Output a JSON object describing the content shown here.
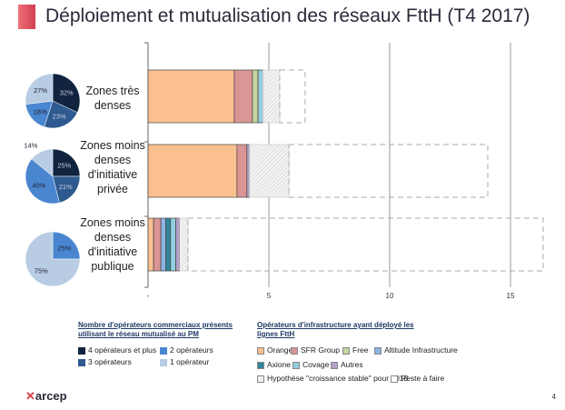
{
  "title": "Déploiement et mutualisation des réseaux FttH (T4 2017)",
  "page_number": "4",
  "logo_text": "arcep",
  "chart_data": [
    {
      "type": "bar",
      "orientation": "horizontal-stacked",
      "categories": [
        "Zones très denses",
        "Zones moins denses d'initiative privée",
        "Zones moins denses d'initiative publique"
      ],
      "category_lines": [
        [
          "Zones très",
          "denses"
        ],
        [
          "Zones moins",
          "denses",
          "d'initiative",
          "privée"
        ],
        [
          "Zones moins",
          "denses",
          "d'initiative",
          "publique"
        ]
      ],
      "xlim": [
        0,
        16.5
      ],
      "xticks": [
        0,
        5,
        10,
        15
      ],
      "xtick_labels": [
        "-",
        "5",
        "10",
        "15"
      ],
      "grid": "vertical",
      "legend_title": "Opérateurs d'infrastructure ayant déployé les lignes FttH",
      "series": [
        {
          "name": "Orange",
          "color": "#fac090",
          "values": [
            3.57,
            3.68,
            0.23
          ]
        },
        {
          "name": "SFR Group",
          "color": "#d99694",
          "values": [
            0.75,
            0.41,
            0.3
          ]
        },
        {
          "name": "Free",
          "color": "#c3d69b",
          "values": [
            0.23,
            0,
            0
          ]
        },
        {
          "name": "Altitude Infrastructure",
          "color": "#8eb4e3",
          "values": [
            0,
            0,
            0.2
          ]
        },
        {
          "name": "Axione",
          "color": "#31859c",
          "values": [
            0,
            0,
            0.2
          ]
        },
        {
          "name": "Covage",
          "color": "#93cddd",
          "values": [
            0.2,
            0,
            0.22
          ]
        },
        {
          "name": "Autres",
          "color": "#b3a2c7",
          "values": [
            0,
            0.1,
            0.15
          ]
        },
        {
          "name": "Hypothèse \"croissance stable\" pour 2018",
          "color": "#eeeeee",
          "pattern": "hatched",
          "values": [
            0.7,
            1.64,
            0.35
          ]
        },
        {
          "name": "Reste à faire",
          "color": "#ffffff",
          "pattern": "dashed-outline",
          "values": [
            1.05,
            8.23,
            14.7
          ]
        }
      ]
    },
    {
      "type": "pie",
      "legend_title": "Nombre d'opérateurs commerciaux présents utilisant le réseau mutualisé au PM",
      "legend": [
        {
          "name": "4 opérateurs et plus",
          "color": "#10243f"
        },
        {
          "name": "2 opérateurs",
          "color": "#4a86d0"
        },
        {
          "name": "3 opérateurs",
          "color": "#2e5a8f"
        },
        {
          "name": "1 opérateur",
          "color": "#b8cce4"
        }
      ],
      "pies": [
        {
          "category": "Zones très denses",
          "values": [
            32,
            23,
            18,
            27
          ],
          "labels": [
            "32%",
            "23%",
            "18%",
            "27%"
          ]
        },
        {
          "category": "Zones moins denses d'initiative privée",
          "values": [
            25,
            21,
            40,
            14
          ],
          "labels": [
            "25%",
            "21%",
            "40%",
            "14%"
          ]
        },
        {
          "category": "Zones moins denses d'initiative publique",
          "values": [
            0,
            0,
            25,
            75
          ],
          "labels": [
            "",
            "",
            "25%",
            "75%"
          ]
        }
      ],
      "slice_order": [
        "4 opérateurs et plus",
        "3 opérateurs",
        "2 opérateurs",
        "1 opérateur"
      ]
    }
  ]
}
